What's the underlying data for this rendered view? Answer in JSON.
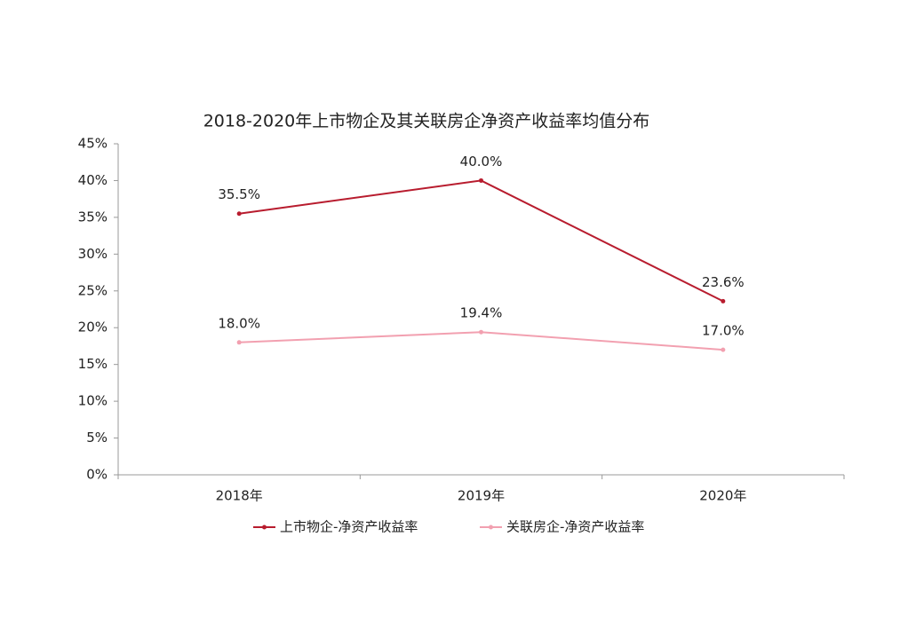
{
  "chart_data": {
    "type": "line",
    "title": "2018-2020年上市物企及其关联房企净资产收益率均值分布",
    "categories": [
      "2018年",
      "2019年",
      "2020年"
    ],
    "series": [
      {
        "name": "上市物企-净资产收益率",
        "color": "#b81c2e",
        "values": [
          35.5,
          40.0,
          23.6
        ],
        "value_labels": [
          "35.5%",
          "40.0%",
          "23.6%"
        ]
      },
      {
        "name": "关联房企-净资产收益率",
        "color": "#f2a0b0",
        "values": [
          18.0,
          19.4,
          17.0
        ],
        "value_labels": [
          "18.0%",
          "19.4%",
          "17.0%"
        ]
      }
    ],
    "ylim": [
      0,
      45
    ],
    "yticks": [
      {
        "value": 0,
        "label": "0%"
      },
      {
        "value": 5,
        "label": "5%"
      },
      {
        "value": 10,
        "label": "10%"
      },
      {
        "value": 15,
        "label": "15%"
      },
      {
        "value": 20,
        "label": "20%"
      },
      {
        "value": 25,
        "label": "25%"
      },
      {
        "value": 30,
        "label": "30%"
      },
      {
        "value": 35,
        "label": "35%"
      },
      {
        "value": 40,
        "label": "40%"
      },
      {
        "value": 45,
        "label": "45%"
      }
    ],
    "grid": false,
    "legend": "bottom"
  }
}
